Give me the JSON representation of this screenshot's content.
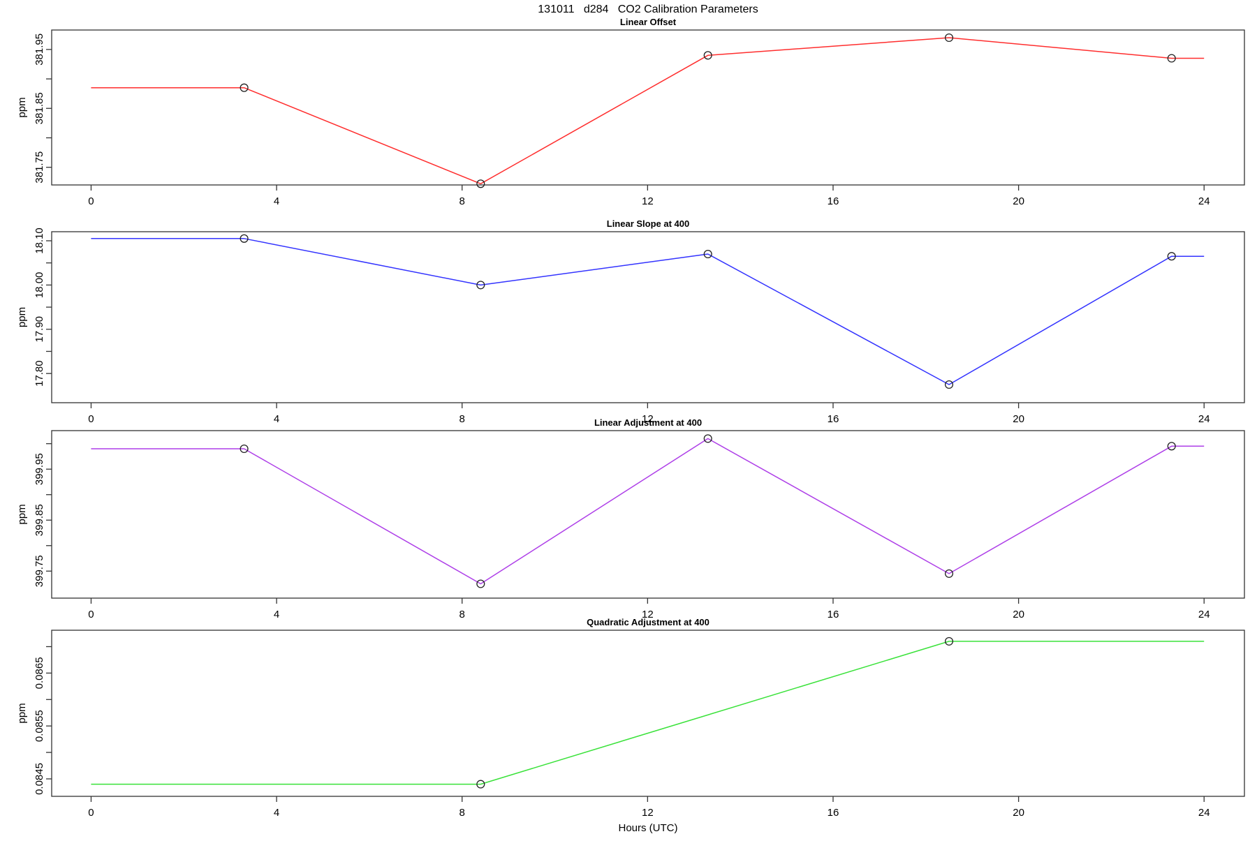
{
  "title": "131011   d284   CO2 Calibration Parameters",
  "xlabel": "Hours (UTC)",
  "axis_color": "#333333",
  "marker_color": "#222222",
  "xticks": {
    "values": [
      0,
      4,
      8,
      12,
      16,
      20,
      24
    ],
    "labels": [
      "0",
      "4",
      "8",
      "12",
      "16",
      "20",
      "24"
    ]
  },
  "xlim": [
    -0.85,
    24.87
  ],
  "chart_data": [
    {
      "type": "line",
      "title": "Linear Offset",
      "ylabel": "ppm",
      "color": "#ff2d2d",
      "ylim": [
        381.72,
        381.983
      ],
      "yticks": [
        {
          "v": 381.75,
          "label": "381.75"
        },
        {
          "v": 381.8,
          "label": ""
        },
        {
          "v": 381.85,
          "label": "381.85"
        },
        {
          "v": 381.9,
          "label": ""
        },
        {
          "v": 381.95,
          "label": "381.95"
        }
      ],
      "points": {
        "x": [
          3.3,
          8.4,
          13.3,
          18.5,
          23.3
        ],
        "y": [
          381.885,
          381.722,
          381.94,
          381.97,
          381.935
        ]
      },
      "line": {
        "x": [
          0,
          3.3,
          8.4,
          13.3,
          18.5,
          23.3,
          24
        ],
        "y": [
          381.885,
          381.885,
          381.722,
          381.94,
          381.97,
          381.935,
          381.935
        ]
      }
    },
    {
      "type": "line",
      "title": "Linear Slope at 400",
      "ylabel": "ppm",
      "color": "#3333ff",
      "ylim": [
        17.734,
        18.1205
      ],
      "yticks": [
        {
          "v": 17.8,
          "label": "17.80"
        },
        {
          "v": 17.85,
          "label": ""
        },
        {
          "v": 17.9,
          "label": "17.90"
        },
        {
          "v": 17.95,
          "label": ""
        },
        {
          "v": 18.0,
          "label": "18.00"
        },
        {
          "v": 18.05,
          "label": ""
        },
        {
          "v": 18.1,
          "label": "18.10"
        }
      ],
      "points": {
        "x": [
          3.3,
          8.4,
          13.3,
          18.5,
          23.3
        ],
        "y": [
          18.105,
          18.0,
          18.07,
          17.775,
          18.065
        ]
      },
      "line": {
        "x": [
          0,
          3.3,
          8.4,
          13.3,
          18.5,
          23.3,
          24
        ],
        "y": [
          18.105,
          18.105,
          18.0,
          18.07,
          17.775,
          18.065,
          18.065
        ]
      }
    },
    {
      "type": "line",
      "title": "Linear Adjustment at 400",
      "ylabel": "ppm",
      "color": "#ae3fe8",
      "ylim": [
        399.697,
        400.0256
      ],
      "yticks": [
        {
          "v": 399.75,
          "label": "399.75"
        },
        {
          "v": 399.8,
          "label": ""
        },
        {
          "v": 399.85,
          "label": "399.85"
        },
        {
          "v": 399.9,
          "label": ""
        },
        {
          "v": 399.95,
          "label": "399.95"
        },
        {
          "v": 400.0,
          "label": ""
        }
      ],
      "points": {
        "x": [
          3.3,
          8.4,
          13.3,
          18.5,
          23.3
        ],
        "y": [
          399.99,
          399.725,
          400.01,
          399.745,
          399.995
        ]
      },
      "line": {
        "x": [
          0,
          3.3,
          8.4,
          13.3,
          18.5,
          23.3,
          24
        ],
        "y": [
          399.99,
          399.99,
          399.725,
          400.01,
          399.745,
          399.995,
          399.995
        ]
      }
    },
    {
      "type": "line",
      "title": "Quadratic Adjustment at 400",
      "ylabel": "ppm",
      "color": "#3ae23a",
      "ylim": [
        0.08417,
        0.08731
      ],
      "yticks": [
        {
          "v": 0.0845,
          "label": "0.0845"
        },
        {
          "v": 0.085,
          "label": ""
        },
        {
          "v": 0.0855,
          "label": "0.0855"
        },
        {
          "v": 0.086,
          "label": ""
        },
        {
          "v": 0.0865,
          "label": "0.0865"
        },
        {
          "v": 0.087,
          "label": ""
        }
      ],
      "points": {
        "x": [
          8.4,
          18.5
        ],
        "y": [
          0.0844,
          0.0871
        ]
      },
      "line": {
        "x": [
          0,
          8.4,
          18.5,
          24
        ],
        "y": [
          0.0844,
          0.0844,
          0.0871,
          0.0871
        ]
      }
    }
  ]
}
